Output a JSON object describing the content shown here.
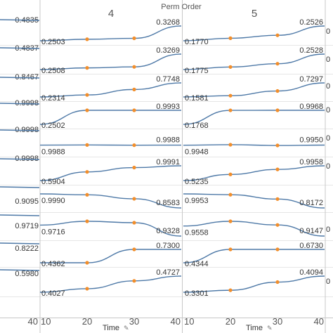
{
  "chart_data": {
    "type": "line",
    "header_title": "Perm Order",
    "xlabel": "Time",
    "xlabel_icon": "pin-icon",
    "xlim": [
      10,
      40
    ],
    "x": [
      10,
      20,
      30,
      40
    ],
    "edge_ticks": [
      "40",
      "40"
    ],
    "colors": {
      "line": "#4e79a7",
      "marker": "#f28e2b",
      "grid": "#e6e6e6",
      "divider": "#c8c8c8"
    },
    "panels": [
      {
        "label": "4",
        "rows": [
          {
            "series": [
              0.2503,
              0.258,
              0.263,
              0.3268
            ],
            "start_label": "0.2503",
            "end_label": "0.3268"
          },
          {
            "series": [
              0.2508,
              0.259,
              0.264,
              0.3269
            ],
            "start_label": "0.2508",
            "end_label": "0.3269"
          },
          {
            "series": [
              0.2314,
              0.31,
              0.52,
              0.7748
            ],
            "start_label": "0.2314",
            "end_label": "0.7748"
          },
          {
            "series": [
              0.2502,
              0.999,
              0.9993,
              0.9993
            ],
            "start_label": "0.2502",
            "end_label": "0.9993"
          },
          {
            "series": [
              0.9988,
              0.999,
              0.9987,
              0.9988
            ],
            "start_label": "0.9988",
            "end_label": "0.9988"
          },
          {
            "series": [
              0.5904,
              0.83,
              0.95,
              0.9991
            ],
            "start_label": "0.5904",
            "end_label": "0.9991"
          },
          {
            "series": [
              0.999,
              0.99,
              0.95,
              0.8583
            ],
            "start_label": "0.9990",
            "end_label": "0.8583"
          },
          {
            "series": [
              0.9716,
              0.985,
              0.98,
              0.9328
            ],
            "start_label": "0.9716",
            "end_label": "0.9328"
          },
          {
            "series": [
              0.4362,
              0.4362,
              0.73,
              0.73
            ],
            "start_label": "0.4362",
            "end_label": "0.7300"
          },
          {
            "series": [
              0.4027,
              0.418,
              0.452,
              0.4727
            ],
            "start_label": "0.4027",
            "end_label": "0.4727"
          }
        ]
      },
      {
        "label": "5",
        "rows": [
          {
            "series": [
              0.177,
              0.19,
              0.205,
              0.2526
            ],
            "start_label": "0.1770",
            "end_label": "0.2526"
          },
          {
            "series": [
              0.1775,
              0.19,
              0.206,
              0.2528
            ],
            "start_label": "0.1775",
            "end_label": "0.2528"
          },
          {
            "series": [
              0.1581,
              0.21,
              0.4,
              0.7297
            ],
            "start_label": "0.1581",
            "end_label": "0.7297"
          },
          {
            "series": [
              0.1768,
              0.995,
              0.9968,
              0.9968
            ],
            "start_label": "0.1768",
            "end_label": "0.9968"
          },
          {
            "series": [
              0.9948,
              0.9955,
              0.9945,
              0.995
            ],
            "start_label": "0.9948",
            "end_label": "0.9950"
          },
          {
            "series": [
              0.5235,
              0.72,
              0.88,
              0.9958
            ],
            "start_label": "0.5235",
            "end_label": "0.9958"
          },
          {
            "series": [
              0.9953,
              0.985,
              0.93,
              0.8172
            ],
            "start_label": "0.9953",
            "end_label": "0.8172"
          },
          {
            "series": [
              0.9558,
              0.975,
              0.96,
              0.9147
            ],
            "start_label": "0.9558",
            "end_label": "0.9147"
          },
          {
            "series": [
              0.4344,
              0.673,
              0.673,
              0.673
            ],
            "start_label": "0.4344",
            "end_label": "0.6730"
          },
          {
            "series": [
              0.3301,
              0.34,
              0.38,
              0.4094
            ],
            "start_label": "0.3301",
            "end_label": "0.4094"
          }
        ]
      }
    ],
    "left_edge_labels": [
      "0.4835",
      "0.4837",
      "0.8467",
      "0.9998",
      "0.9998",
      "0.9998",
      "",
      "0.9095",
      "0.9719",
      "0.8222",
      "0.5980"
    ],
    "right_edge_labels": [
      "0",
      "0",
      "0",
      "0",
      "0",
      "0",
      "",
      "0",
      "",
      "0",
      "0"
    ]
  }
}
